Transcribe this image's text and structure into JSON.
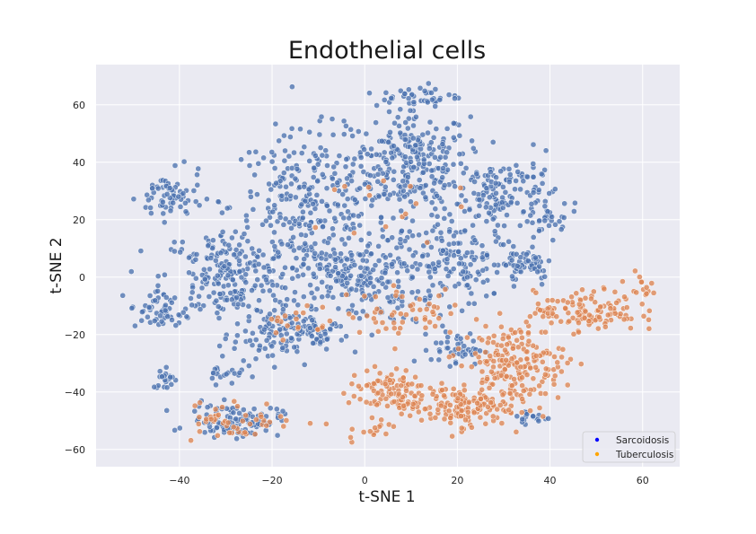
{
  "chart_data": {
    "type": "scatter",
    "title": "Endothelial cells",
    "xlabel": "t-SNE 1",
    "ylabel": "t-SNE 2",
    "xlim": [
      -58,
      68
    ],
    "ylim": [
      -66,
      74
    ],
    "xticks": [
      -40,
      -20,
      0,
      20,
      40,
      60
    ],
    "yticks": [
      -60,
      -40,
      -20,
      0,
      20,
      40,
      60
    ],
    "grid": true,
    "legend_position": "lower-right",
    "series": [
      {
        "name": "Sarcoidosis",
        "color": "#4c72b0",
        "legend_color": "#0000ff",
        "clusters": [
          {
            "cx": 10,
            "cy": 40,
            "sx": 9,
            "sy": 13,
            "n": 260
          },
          {
            "cx": -12,
            "cy": 25,
            "sx": 12,
            "sy": 18,
            "n": 280
          },
          {
            "cx": -30,
            "cy": 0,
            "sx": 10,
            "sy": 12,
            "n": 220
          },
          {
            "cx": -2,
            "cy": 0,
            "sx": 10,
            "sy": 11,
            "n": 220
          },
          {
            "cx": 20,
            "cy": 5,
            "sx": 10,
            "sy": 10,
            "n": 160
          },
          {
            "cx": 30,
            "cy": 28,
            "sx": 8,
            "sy": 10,
            "n": 150
          },
          {
            "cx": -42,
            "cy": 28,
            "sx": 5,
            "sy": 6,
            "n": 70
          },
          {
            "cx": -28,
            "cy": -50,
            "sx": 7,
            "sy": 4,
            "n": 110
          },
          {
            "cx": -20,
            "cy": -20,
            "sx": 6,
            "sy": 7,
            "n": 90
          },
          {
            "cx": -45,
            "cy": -12,
            "sx": 4,
            "sy": 5,
            "n": 45
          },
          {
            "cx": 20,
            "cy": -25,
            "sx": 4,
            "sy": 4,
            "n": 45
          },
          {
            "cx": 12,
            "cy": 63,
            "sx": 6,
            "sy": 3,
            "n": 40
          },
          {
            "cx": 35,
            "cy": 5,
            "sx": 4,
            "sy": 4,
            "n": 50
          },
          {
            "cx": 40,
            "cy": 20,
            "sx": 3,
            "sy": 4,
            "n": 25
          },
          {
            "cx": -10,
            "cy": -20,
            "sx": 4,
            "sy": 4,
            "n": 40
          },
          {
            "cx": -43,
            "cy": -35,
            "sx": 2,
            "sy": 3,
            "n": 20
          },
          {
            "cx": 36,
            "cy": -49,
            "sx": 3,
            "sy": 2,
            "n": 20
          },
          {
            "cx": -30,
            "cy": -33,
            "sx": 3,
            "sy": 3,
            "n": 20
          }
        ]
      },
      {
        "name": "Tuberculosis",
        "color": "#dd8452",
        "legend_color": "#ffa500",
        "clusters": [
          {
            "cx": 32,
            "cy": -30,
            "sx": 8,
            "sy": 10,
            "n": 200
          },
          {
            "cx": 20,
            "cy": -45,
            "sx": 8,
            "sy": 5,
            "n": 140
          },
          {
            "cx": 5,
            "cy": -40,
            "sx": 6,
            "sy": 6,
            "n": 100
          },
          {
            "cx": 48,
            "cy": -12,
            "sx": 8,
            "sy": 5,
            "n": 120
          },
          {
            "cx": -28,
            "cy": -50,
            "sx": 9,
            "sy": 5,
            "n": 50
          },
          {
            "cx": 10,
            "cy": -12,
            "sx": 10,
            "sy": 6,
            "n": 50
          },
          {
            "cx": -15,
            "cy": -15,
            "sx": 5,
            "sy": 5,
            "n": 20
          },
          {
            "cx": 59,
            "cy": -3,
            "sx": 2,
            "sy": 3,
            "n": 15
          },
          {
            "cx": 2,
            "cy": -53,
            "sx": 5,
            "sy": 3,
            "n": 15
          },
          {
            "cx": 0,
            "cy": 25,
            "sx": 12,
            "sy": 10,
            "n": 15
          }
        ]
      }
    ]
  }
}
